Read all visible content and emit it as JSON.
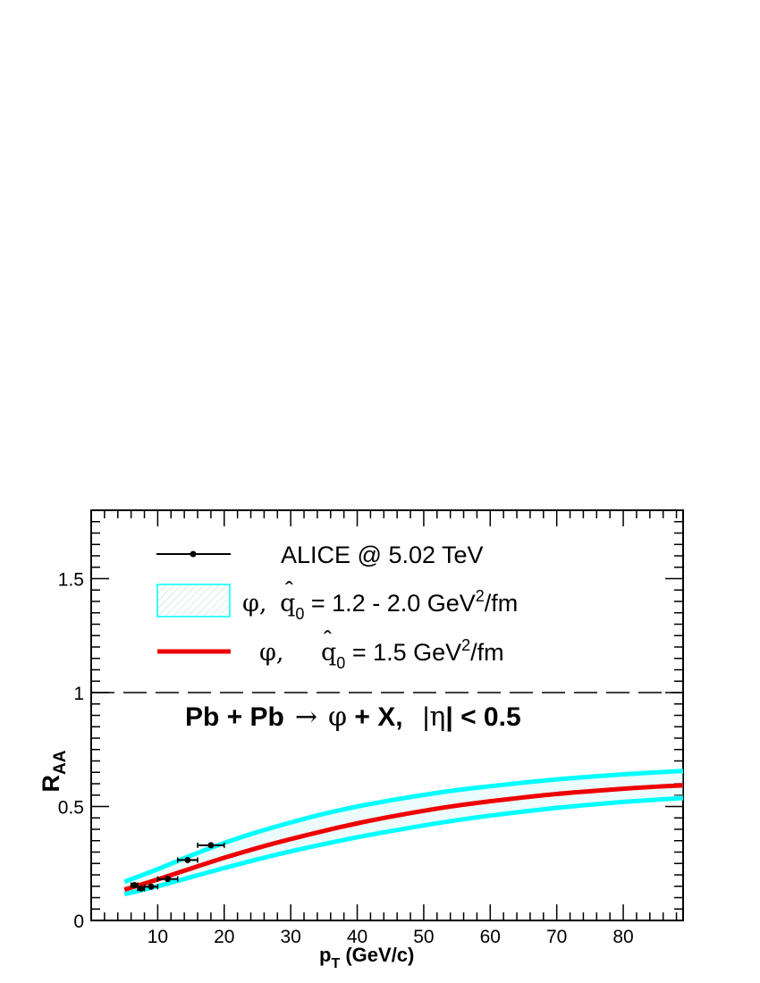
{
  "chart_data": {
    "type": "line",
    "title": "",
    "xlabel": {
      "main": "p",
      "sub": "T",
      "rest": " (GeV/c)"
    },
    "ylabel": {
      "main": "R",
      "sub": "AA"
    },
    "xlim": [
      0,
      89
    ],
    "ylim": [
      0,
      1.8
    ],
    "x_ticks": [
      {
        "value": 10,
        "label": "10"
      },
      {
        "value": 20,
        "label": "20"
      },
      {
        "value": 30,
        "label": "30"
      },
      {
        "value": 40,
        "label": "40"
      },
      {
        "value": 50,
        "label": "50"
      },
      {
        "value": 60,
        "label": "60"
      },
      {
        "value": 70,
        "label": "70"
      },
      {
        "value": 80,
        "label": "80"
      }
    ],
    "y_ticks": [
      {
        "value": 0,
        "label": "0"
      },
      {
        "value": 0.5,
        "label": "0.5"
      },
      {
        "value": 1,
        "label": "1"
      },
      {
        "value": 1.5,
        "label": "1.5"
      }
    ],
    "reference_line": {
      "y": 1,
      "style": "dashed"
    },
    "data_points": {
      "name": "ALICE @ 5.02 TeV",
      "points": [
        {
          "x": 6.5,
          "xerr": 0.5,
          "y": 0.155
        },
        {
          "x": 7.5,
          "xerr": 0.5,
          "y": 0.14
        },
        {
          "x": 9.0,
          "xerr": 1.0,
          "y": 0.148
        },
        {
          "x": 11.5,
          "xerr": 1.5,
          "y": 0.182
        },
        {
          "x": 14.5,
          "xerr": 1.5,
          "y": 0.265
        },
        {
          "x": 18.0,
          "xerr": 2.0,
          "y": 0.33
        }
      ]
    },
    "band": {
      "label_parts": {
        "particle": "φ,  ",
        "q": "q",
        "hat": "ˆ",
        "sub0": "0",
        "range": " = 1.2 - 2.0 GeV",
        "sup2": "2",
        "unit": "/fm"
      },
      "color": "#00ffff",
      "x": [
        5,
        10,
        15,
        20,
        25,
        30,
        35,
        40,
        45,
        50,
        55,
        60,
        65,
        70,
        75,
        80,
        85,
        89
      ],
      "upper": [
        0.17,
        0.225,
        0.285,
        0.34,
        0.388,
        0.43,
        0.468,
        0.5,
        0.527,
        0.551,
        0.572,
        0.589,
        0.605,
        0.619,
        0.631,
        0.641,
        0.65,
        0.656
      ],
      "lower": [
        0.115,
        0.15,
        0.19,
        0.23,
        0.268,
        0.303,
        0.335,
        0.365,
        0.392,
        0.417,
        0.44,
        0.46,
        0.478,
        0.494,
        0.508,
        0.52,
        0.53,
        0.537
      ]
    },
    "central_curve": {
      "label_parts": {
        "particle": "φ,",
        "q": "q",
        "hat": "ˆ",
        "sub0": "0",
        "range": " = 1.5 GeV",
        "sup2": "2",
        "unit": "/fm"
      },
      "color": "#ee0000",
      "x": [
        5,
        10,
        15,
        20,
        25,
        30,
        35,
        40,
        45,
        50,
        55,
        60,
        65,
        70,
        75,
        80,
        85,
        89
      ],
      "y": [
        0.135,
        0.18,
        0.228,
        0.275,
        0.318,
        0.357,
        0.393,
        0.426,
        0.455,
        0.481,
        0.504,
        0.523,
        0.54,
        0.555,
        0.567,
        0.578,
        0.587,
        0.593
      ]
    },
    "annotation": {
      "lhs": "Pb + Pb",
      "arrow": "→",
      "particle": "φ",
      "rhs": " + X,",
      "eta_open": "|",
      "eta": "η",
      "eta_close": "| < 0.5"
    },
    "grid": false,
    "legend_position": "top-left"
  }
}
